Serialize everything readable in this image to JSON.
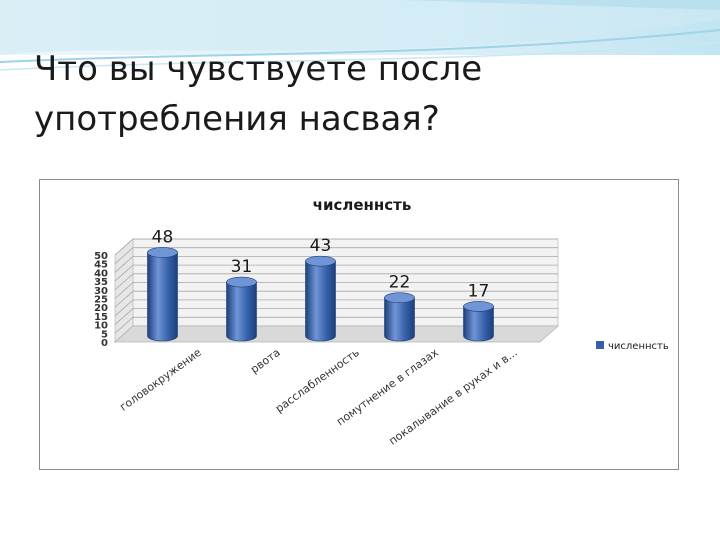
{
  "slide": {
    "title": "Что вы чувствуете после употребления насвая?"
  },
  "chart_data": {
    "type": "bar",
    "title": "численнсть",
    "categories": [
      "головокружение",
      "рвота",
      "расслабленность",
      "помутнение в глазах",
      "покалывание в руках и в..."
    ],
    "series": [
      {
        "name": "численнсть",
        "values": [
          48,
          31,
          43,
          22,
          17
        ]
      }
    ],
    "ylim": [
      0,
      50
    ],
    "yticks": [
      0,
      5,
      10,
      15,
      20,
      25,
      30,
      35,
      40,
      45,
      50
    ],
    "grid": true,
    "legend": "right",
    "style": "3d-cylinder",
    "colors": {
      "bar": "#3560a8",
      "bar_light": "#6f95d6",
      "bar_dark": "#1d3f7a",
      "grid": "#a9a9a9",
      "wall": "#f2f2f2"
    }
  }
}
